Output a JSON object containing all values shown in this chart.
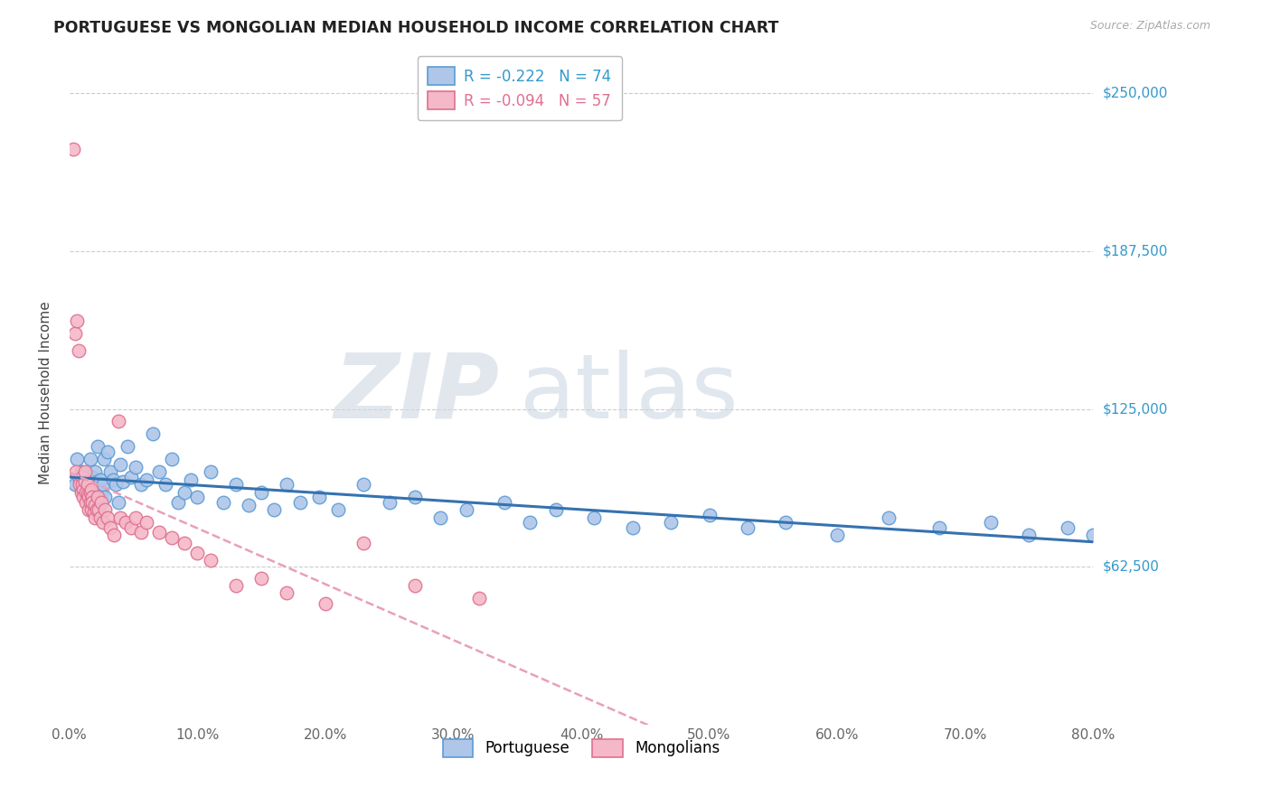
{
  "title": "PORTUGUESE VS MONGOLIAN MEDIAN HOUSEHOLD INCOME CORRELATION CHART",
  "source": "Source: ZipAtlas.com",
  "ylabel": "Median Household Income",
  "ytick_labels": [
    "$62,500",
    "$125,000",
    "$187,500",
    "$250,000"
  ],
  "ytick_values": [
    62500,
    125000,
    187500,
    250000
  ],
  "ymin": 0,
  "ymax": 262500,
  "xmin": 0.0,
  "xmax": 0.8,
  "legend_r_portuguese": "R = -0.222   N = 74",
  "legend_r_mongolians": "R = -0.094   N = 57",
  "portuguese_color": "#aec6e8",
  "portuguese_edge": "#5b9bd5",
  "mongolians_color": "#f4b8c8",
  "mongolians_edge": "#e07090",
  "trendline_portuguese_color": "#3572b0",
  "trendline_mongolians_color": "#e8a0b8",
  "portuguese_points_x": [
    0.004,
    0.006,
    0.008,
    0.009,
    0.01,
    0.011,
    0.012,
    0.013,
    0.014,
    0.015,
    0.016,
    0.017,
    0.018,
    0.019,
    0.02,
    0.021,
    0.022,
    0.023,
    0.024,
    0.025,
    0.026,
    0.027,
    0.028,
    0.03,
    0.032,
    0.034,
    0.036,
    0.038,
    0.04,
    0.042,
    0.045,
    0.048,
    0.052,
    0.056,
    0.06,
    0.065,
    0.07,
    0.075,
    0.08,
    0.085,
    0.09,
    0.095,
    0.1,
    0.11,
    0.12,
    0.13,
    0.14,
    0.15,
    0.16,
    0.17,
    0.18,
    0.195,
    0.21,
    0.23,
    0.25,
    0.27,
    0.29,
    0.31,
    0.34,
    0.36,
    0.38,
    0.41,
    0.44,
    0.47,
    0.5,
    0.53,
    0.56,
    0.6,
    0.64,
    0.68,
    0.72,
    0.75,
    0.78,
    0.8
  ],
  "portuguese_points_y": [
    95000,
    105000,
    97000,
    100000,
    93000,
    98000,
    92000,
    96000,
    91000,
    95000,
    105000,
    92000,
    98000,
    94000,
    100000,
    96000,
    110000,
    88000,
    97000,
    92000,
    95000,
    105000,
    90000,
    108000,
    100000,
    97000,
    95000,
    88000,
    103000,
    96000,
    110000,
    98000,
    102000,
    95000,
    97000,
    115000,
    100000,
    95000,
    105000,
    88000,
    92000,
    97000,
    90000,
    100000,
    88000,
    95000,
    87000,
    92000,
    85000,
    95000,
    88000,
    90000,
    85000,
    95000,
    88000,
    90000,
    82000,
    85000,
    88000,
    80000,
    85000,
    82000,
    78000,
    80000,
    83000,
    78000,
    80000,
    75000,
    82000,
    78000,
    80000,
    75000,
    78000,
    75000
  ],
  "mongolians_points_x": [
    0.003,
    0.004,
    0.005,
    0.006,
    0.007,
    0.008,
    0.009,
    0.01,
    0.01,
    0.011,
    0.011,
    0.012,
    0.012,
    0.013,
    0.013,
    0.014,
    0.014,
    0.015,
    0.015,
    0.016,
    0.016,
    0.017,
    0.017,
    0.018,
    0.018,
    0.019,
    0.02,
    0.02,
    0.021,
    0.022,
    0.023,
    0.024,
    0.025,
    0.026,
    0.028,
    0.03,
    0.032,
    0.035,
    0.038,
    0.04,
    0.044,
    0.048,
    0.052,
    0.056,
    0.06,
    0.07,
    0.08,
    0.09,
    0.1,
    0.11,
    0.13,
    0.15,
    0.17,
    0.2,
    0.23,
    0.27,
    0.32
  ],
  "mongolians_points_y": [
    228000,
    155000,
    100000,
    160000,
    148000,
    95000,
    92000,
    98000,
    95000,
    93000,
    90000,
    96000,
    100000,
    92000,
    88000,
    95000,
    91000,
    90000,
    85000,
    92000,
    88000,
    85000,
    93000,
    90000,
    88000,
    84000,
    87000,
    82000,
    85000,
    90000,
    85000,
    82000,
    88000,
    80000,
    85000,
    82000,
    78000,
    75000,
    120000,
    82000,
    80000,
    78000,
    82000,
    76000,
    80000,
    76000,
    74000,
    72000,
    68000,
    65000,
    55000,
    58000,
    52000,
    48000,
    72000,
    55000,
    50000
  ]
}
